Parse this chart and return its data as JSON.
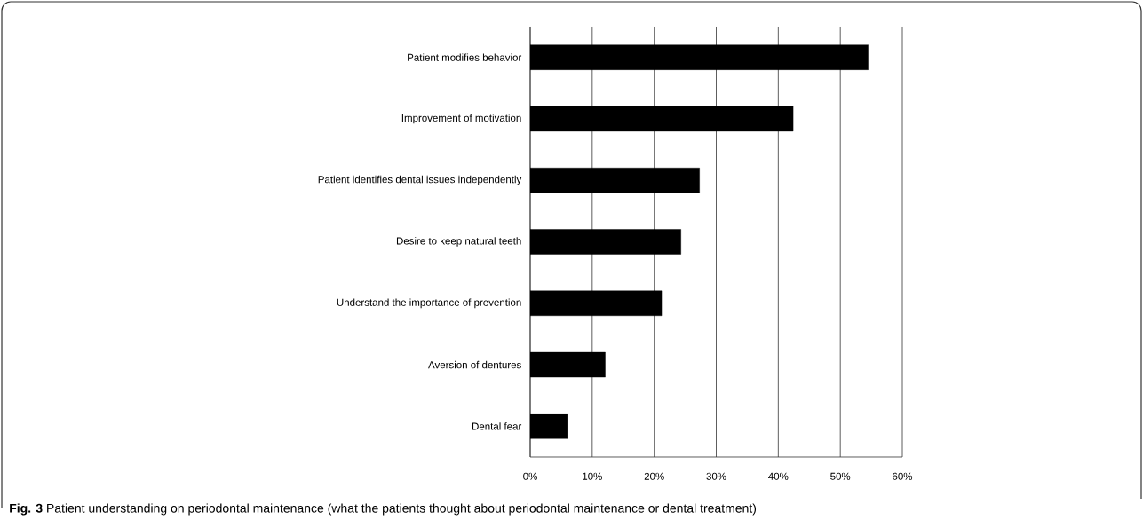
{
  "chart_data": {
    "type": "bar",
    "orientation": "horizontal",
    "categories": [
      "Patient modifies behavior",
      "Improvement of motivation",
      "Patient identifies dental issues independently",
      "Desire to keep natural teeth",
      "Understand the importance of prevention",
      "Aversion of dentures",
      "Dental fear"
    ],
    "values": [
      54.5,
      42.4,
      27.3,
      24.3,
      21.2,
      12.1,
      6.0
    ],
    "color": "#000000",
    "xlim": [
      0,
      60
    ],
    "xticks": [
      {
        "value": 0,
        "label": "0%"
      },
      {
        "value": 10,
        "label": "10%"
      },
      {
        "value": 20,
        "label": "20%"
      },
      {
        "value": 30,
        "label": "30%"
      },
      {
        "value": 40,
        "label": "40%"
      },
      {
        "value": 50,
        "label": "50%"
      },
      {
        "value": 60,
        "label": "60%"
      }
    ],
    "grid": "x",
    "annotations": [
      "**Fig. 3** Patient understanding on periodontal maintenance (what the patients thought about periodontal maintenance or dental treatment)"
    ]
  }
}
